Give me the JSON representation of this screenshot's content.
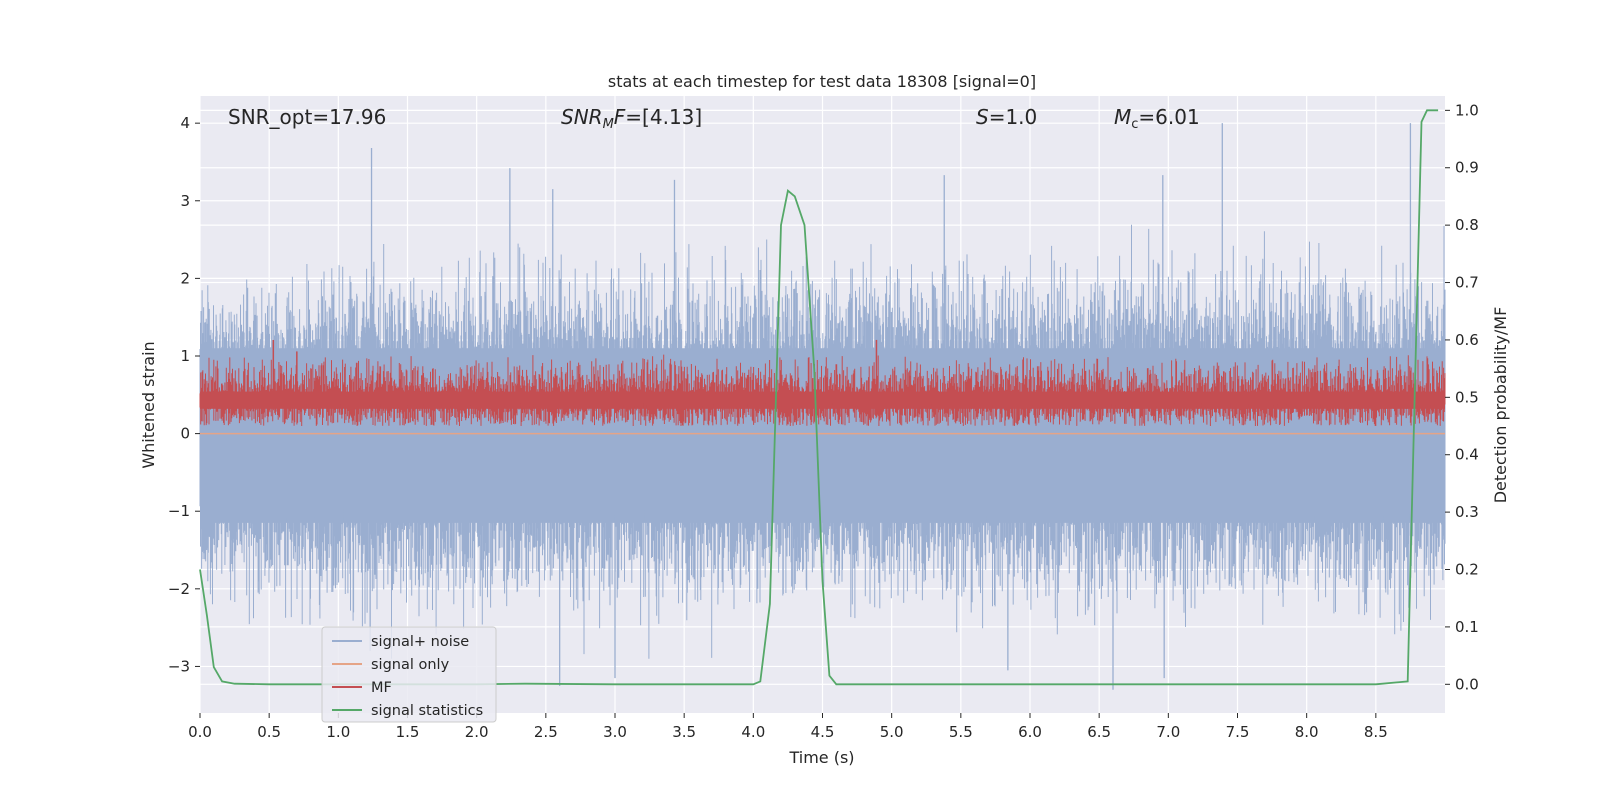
{
  "chart_data": {
    "type": "line",
    "title": "stats at each timestep for test data 18308 [signal=0]",
    "xlabel": "Time (s)",
    "ylabel": "Whitened strain",
    "ylabel_right": "Detection probability/MF",
    "xlim": [
      0.0,
      9.0
    ],
    "ylim": [
      -3.6,
      4.35
    ],
    "ylim_right": [
      -0.05,
      1.025
    ],
    "x_ticks": [
      "0.0",
      "0.5",
      "1.0",
      "1.5",
      "2.0",
      "2.5",
      "3.0",
      "3.5",
      "4.0",
      "4.5",
      "5.0",
      "5.5",
      "6.0",
      "6.5",
      "7.0",
      "7.5",
      "8.0",
      "8.5"
    ],
    "x_tick_values": [
      0.0,
      0.5,
      1.0,
      1.5,
      2.0,
      2.5,
      3.0,
      3.5,
      4.0,
      4.5,
      5.0,
      5.5,
      6.0,
      6.5,
      7.0,
      7.5,
      8.0,
      8.5
    ],
    "y_ticks": [
      "4",
      "3",
      "2",
      "1",
      "0",
      "−1",
      "−2",
      "−3"
    ],
    "y_tick_values": [
      4,
      3,
      2,
      1,
      0,
      -1,
      -2,
      -3
    ],
    "y_right_ticks": [
      "1.0",
      "0.9",
      "0.8",
      "0.7",
      "0.6",
      "0.5",
      "0.4",
      "0.3",
      "0.2",
      "0.1",
      "0.0"
    ],
    "y_right_tick_values": [
      1.0,
      0.9,
      0.8,
      0.7,
      0.6,
      0.5,
      0.4,
      0.3,
      0.2,
      0.1,
      0.0
    ],
    "grid": true,
    "legend_placement": "lower-left",
    "annotations": {
      "snr_opt": "SNR_opt=17.96",
      "snr_mf": "=[4.13]",
      "snr_mf_prefix": "SNR",
      "snr_mf_sub": "M",
      "snr_mf_suffix": "F",
      "s_label": "S",
      "s_value": "=1.0",
      "mc_label": "M",
      "mc_sub": "c",
      "mc_value": "=6.01"
    },
    "series": [
      {
        "name": "signal+ noise",
        "color": "#9aaed0",
        "style": "noise",
        "envelope": {
          "upper_typical": 1.75,
          "lower_typical": -1.9,
          "peak_max": 4.0,
          "peak_min": -3.3
        },
        "spikes": [
          {
            "x": 1.24,
            "y": 3.68
          },
          {
            "x": 2.24,
            "y": 3.42
          },
          {
            "x": 2.55,
            "y": 3.15
          },
          {
            "x": 3.43,
            "y": 3.27
          },
          {
            "x": 5.38,
            "y": 3.33
          },
          {
            "x": 6.96,
            "y": 3.33
          },
          {
            "x": 7.39,
            "y": 4.0
          },
          {
            "x": 8.75,
            "y": 4.0
          },
          {
            "x": 2.6,
            "y": -3.25
          },
          {
            "x": 3.0,
            "y": -3.15
          },
          {
            "x": 5.84,
            "y": -3.05
          },
          {
            "x": 6.6,
            "y": -3.3
          },
          {
            "x": 6.97,
            "y": -3.15
          },
          {
            "x": 1.23,
            "y": -2.8
          },
          {
            "x": 8.75,
            "y": -1.75
          }
        ]
      },
      {
        "name": "signal only",
        "color": "#e5a487",
        "style": "flat",
        "value": 0.0
      },
      {
        "name": "MF",
        "color": "#c44e52",
        "style": "mf",
        "axis": "right",
        "envelope": {
          "center": 0.5,
          "low": 0.46,
          "high": 0.56
        },
        "spikes": [
          {
            "x": 0.53,
            "y": 0.6
          },
          {
            "x": 4.89,
            "y": 0.6
          },
          {
            "x": 0.7,
            "y": 0.58
          }
        ]
      },
      {
        "name": "signal statistics",
        "color": "#55a868",
        "style": "line",
        "axis": "right",
        "x": [
          0.0,
          0.05,
          0.1,
          0.16,
          0.25,
          0.5,
          1.0,
          2.0,
          2.35,
          3.0,
          3.5,
          4.0,
          4.05,
          4.12,
          4.2,
          4.25,
          4.3,
          4.37,
          4.44,
          4.5,
          4.55,
          4.6,
          5.0,
          6.0,
          7.0,
          8.0,
          8.5,
          8.73,
          8.76,
          8.83,
          8.87,
          8.95
        ],
        "y": [
          0.2,
          0.12,
          0.03,
          0.005,
          0.001,
          0.0,
          0.0,
          0.0,
          0.001,
          0.0,
          0.0,
          0.0,
          0.005,
          0.14,
          0.8,
          0.86,
          0.85,
          0.8,
          0.55,
          0.18,
          0.015,
          0.0,
          0.0,
          0.0,
          0.0,
          0.0,
          0.0,
          0.005,
          0.3,
          0.98,
          1.0,
          1.0
        ]
      }
    ]
  }
}
